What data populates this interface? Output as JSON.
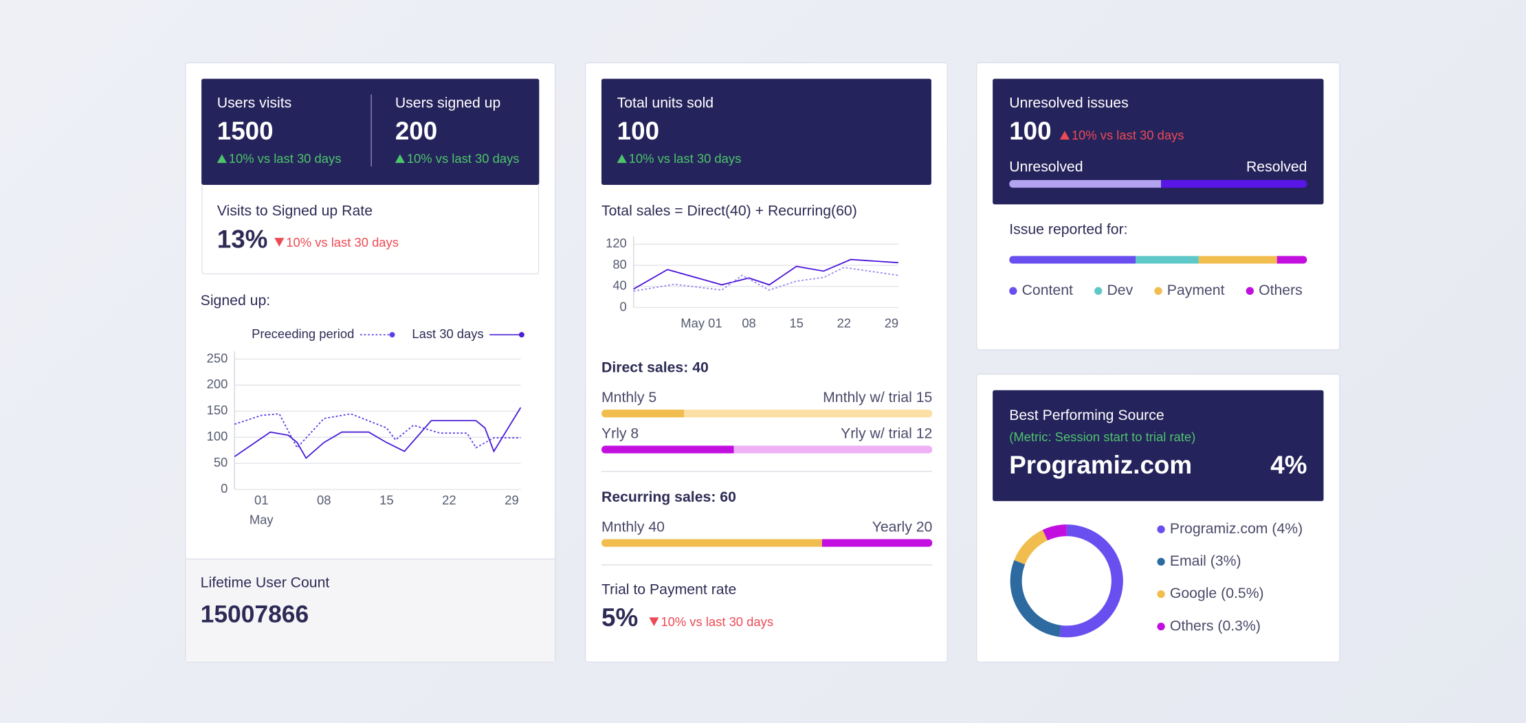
{
  "users_card": {
    "kpis": [
      {
        "label": "Users visits",
        "value": 1500,
        "change": "10% vs last 30 days"
      },
      {
        "label": "Users signed up",
        "value": 200,
        "change": "10% vs last 30 days"
      }
    ],
    "rate": {
      "label": "Visits to Signed up Rate",
      "value": "13%",
      "change": "10% vs last 30 days"
    },
    "signed_up_chart": {
      "type": "line",
      "title": "Signed up:",
      "grid": true,
      "xlim": [
        -2,
        30
      ],
      "xticks": [
        {
          "value": 1,
          "label": "01"
        },
        {
          "value": 8,
          "label": "08"
        },
        {
          "value": 15,
          "label": "15"
        },
        {
          "value": 22,
          "label": "22"
        },
        {
          "value": 29,
          "label": "29"
        }
      ],
      "x_sublabel": "May",
      "ylim": [
        0,
        250
      ],
      "yticks": [
        0,
        50,
        100,
        150,
        200,
        250
      ],
      "series": [
        {
          "name": "Preceeding period",
          "color": "#5b3fe6",
          "dashed": true,
          "x": [
            -2,
            1,
            3,
            5,
            8,
            11,
            15,
            16,
            18,
            21,
            24,
            25,
            27,
            30
          ],
          "values": [
            125,
            142,
            145,
            80,
            136,
            145,
            118,
            95,
            123,
            108,
            108,
            80,
            99,
            99
          ]
        },
        {
          "name": "Last 30 days",
          "color": "#4a1fd6",
          "dashed": false,
          "x": [
            -2,
            2,
            4,
            5,
            6,
            8,
            10,
            13,
            15,
            17,
            20,
            25,
            26,
            27,
            30
          ],
          "values": [
            63,
            110,
            104,
            90,
            60,
            90,
            110,
            110,
            90,
            73,
            132,
            132,
            118,
            73,
            157
          ]
        }
      ]
    },
    "lifetime": {
      "label": "Lifetime User Count",
      "value": 15007866
    }
  },
  "sales_card": {
    "kpi": {
      "label": "Total units sold",
      "value": 100,
      "change": "10% vs last 30 days"
    },
    "total_sales_chart": {
      "type": "line",
      "title": "Total sales = Direct(40) + Recurring(60)",
      "grid": true,
      "xlim": [
        -9,
        30
      ],
      "xticks": [
        {
          "value": 1,
          "label": "May 01"
        },
        {
          "value": 8,
          "label": "08"
        },
        {
          "value": 15,
          "label": "15"
        },
        {
          "value": 22,
          "label": "22"
        },
        {
          "value": 29,
          "label": "29"
        }
      ],
      "ylim": [
        0,
        120
      ],
      "yticks": [
        0,
        40,
        80,
        120
      ],
      "series": [
        {
          "color": "#4b16d9",
          "dashed": false,
          "x": [
            -9,
            -4,
            4,
            8,
            11,
            15,
            19,
            23,
            30
          ],
          "values": [
            35,
            72,
            43,
            56,
            43,
            78,
            69,
            91,
            85
          ]
        },
        {
          "color": "#9a86f0",
          "dashed": true,
          "x": [
            -9,
            -3,
            4,
            7,
            11,
            15,
            19,
            22,
            30
          ],
          "values": [
            31,
            44,
            33,
            61,
            33,
            50,
            57,
            76,
            61
          ]
        }
      ]
    },
    "direct": {
      "label": "Direct sales:",
      "value": 40,
      "bars": [
        {
          "segments": [
            {
              "label": "Mnthly",
              "value": 5,
              "color": "#f2bd4f"
            },
            {
              "label": "Mnthly w/ trial",
              "value": 15,
              "color": "#fcdfa5"
            }
          ]
        },
        {
          "segments": [
            {
              "label": "Yrly",
              "value": 8,
              "color": "#c20fe0"
            },
            {
              "label": "Yrly w/ trial",
              "value": 12,
              "color": "#eeb1f5"
            }
          ]
        }
      ]
    },
    "recurring": {
      "label": "Recurring sales:",
      "value": 60,
      "bars": [
        {
          "segments": [
            {
              "label": "Mnthly",
              "value": 40,
              "color": "#f2bd4f"
            },
            {
              "label": "Yearly",
              "value": 20,
              "color": "#c20fe0"
            }
          ]
        }
      ]
    },
    "trial": {
      "label": "Trial to Payment rate",
      "value": "5%",
      "change": "10% vs last 30 days"
    }
  },
  "issues_card": {
    "label": "Unresolved issues",
    "value": 100,
    "change": "10% vs last 30 days",
    "status_bar": {
      "segments": [
        {
          "label": "Unresolved",
          "value": 51,
          "color": "#b3a3f0"
        },
        {
          "label": "Resolved",
          "value": 49,
          "color": "#5a16e6"
        }
      ]
    },
    "reported": {
      "type": "stacked-bar",
      "title": "Issue reported for:",
      "series": [
        {
          "name": "Content",
          "value": 42,
          "color": "#6a4ff0"
        },
        {
          "name": "Dev",
          "value": 21,
          "color": "#5ec8c8"
        },
        {
          "name": "Payment",
          "value": 26,
          "color": "#f2bd4f"
        },
        {
          "name": "Others",
          "value": 10,
          "color": "#c20fe0"
        }
      ]
    }
  },
  "source_card": {
    "title": "Best Performing Source",
    "metric": "(Metric: Session start to trial rate)",
    "name": "Programiz.com",
    "value": "4%",
    "donut": {
      "type": "donut",
      "series": [
        {
          "name": "Programiz.com (4%)",
          "value": 52,
          "color": "#6a4ff0"
        },
        {
          "name": "Email (3%)",
          "value": 29,
          "color": "#2c6aa0"
        },
        {
          "name": "Google (0.5%)",
          "value": 12,
          "color": "#f2bd4f"
        },
        {
          "name": "Others (0.3%)",
          "value": 7,
          "color": "#c20fe0"
        }
      ]
    }
  }
}
